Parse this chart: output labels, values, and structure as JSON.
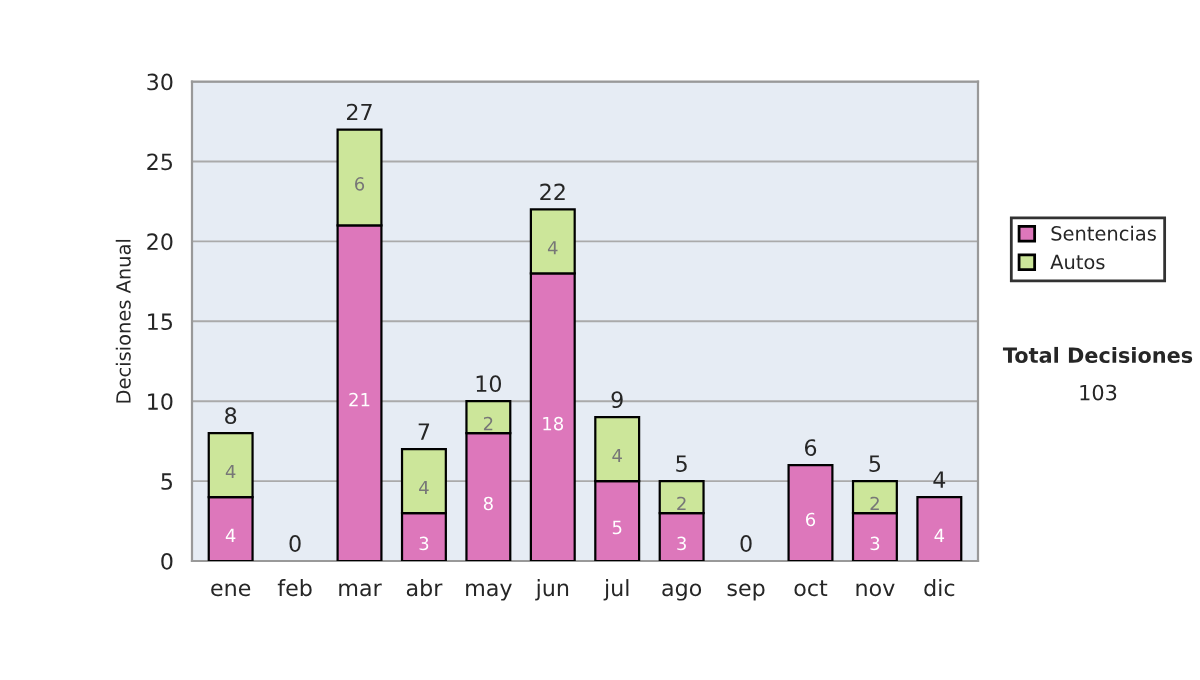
{
  "chart_data": {
    "type": "bar",
    "stacked": true,
    "ylabel": "Decisiones Anual",
    "categories": [
      "ene",
      "feb",
      "mar",
      "abr",
      "may",
      "jun",
      "jul",
      "ago",
      "sep",
      "oct",
      "nov",
      "dic"
    ],
    "series": [
      {
        "name": "Sentencias",
        "color": "#dd77bb",
        "values": [
          4,
          0,
          21,
          3,
          8,
          18,
          5,
          3,
          0,
          6,
          3,
          4
        ],
        "value_labels": [
          "4",
          null,
          "21",
          "3",
          "8",
          "18",
          "5",
          "3",
          null,
          "6",
          "3",
          "4"
        ]
      },
      {
        "name": "Autos",
        "color": "#cce69a",
        "values": [
          4,
          0,
          6,
          4,
          2,
          4,
          4,
          2,
          0,
          0,
          2,
          0
        ],
        "value_labels": [
          "4",
          null,
          "6",
          "4",
          "2",
          "4",
          "4",
          "2",
          null,
          null,
          "2",
          null
        ]
      }
    ],
    "totals": [
      "8",
      "0",
      "27",
      "7",
      "10",
      "22",
      "9",
      "5",
      "0",
      "6",
      "5",
      "4"
    ],
    "ylim": [
      0,
      30
    ],
    "yticks": [
      0,
      5,
      10,
      15,
      20,
      25,
      30
    ],
    "grid": "y",
    "legend": "right",
    "annotations": [
      "Total Decisiones",
      "103"
    ]
  }
}
